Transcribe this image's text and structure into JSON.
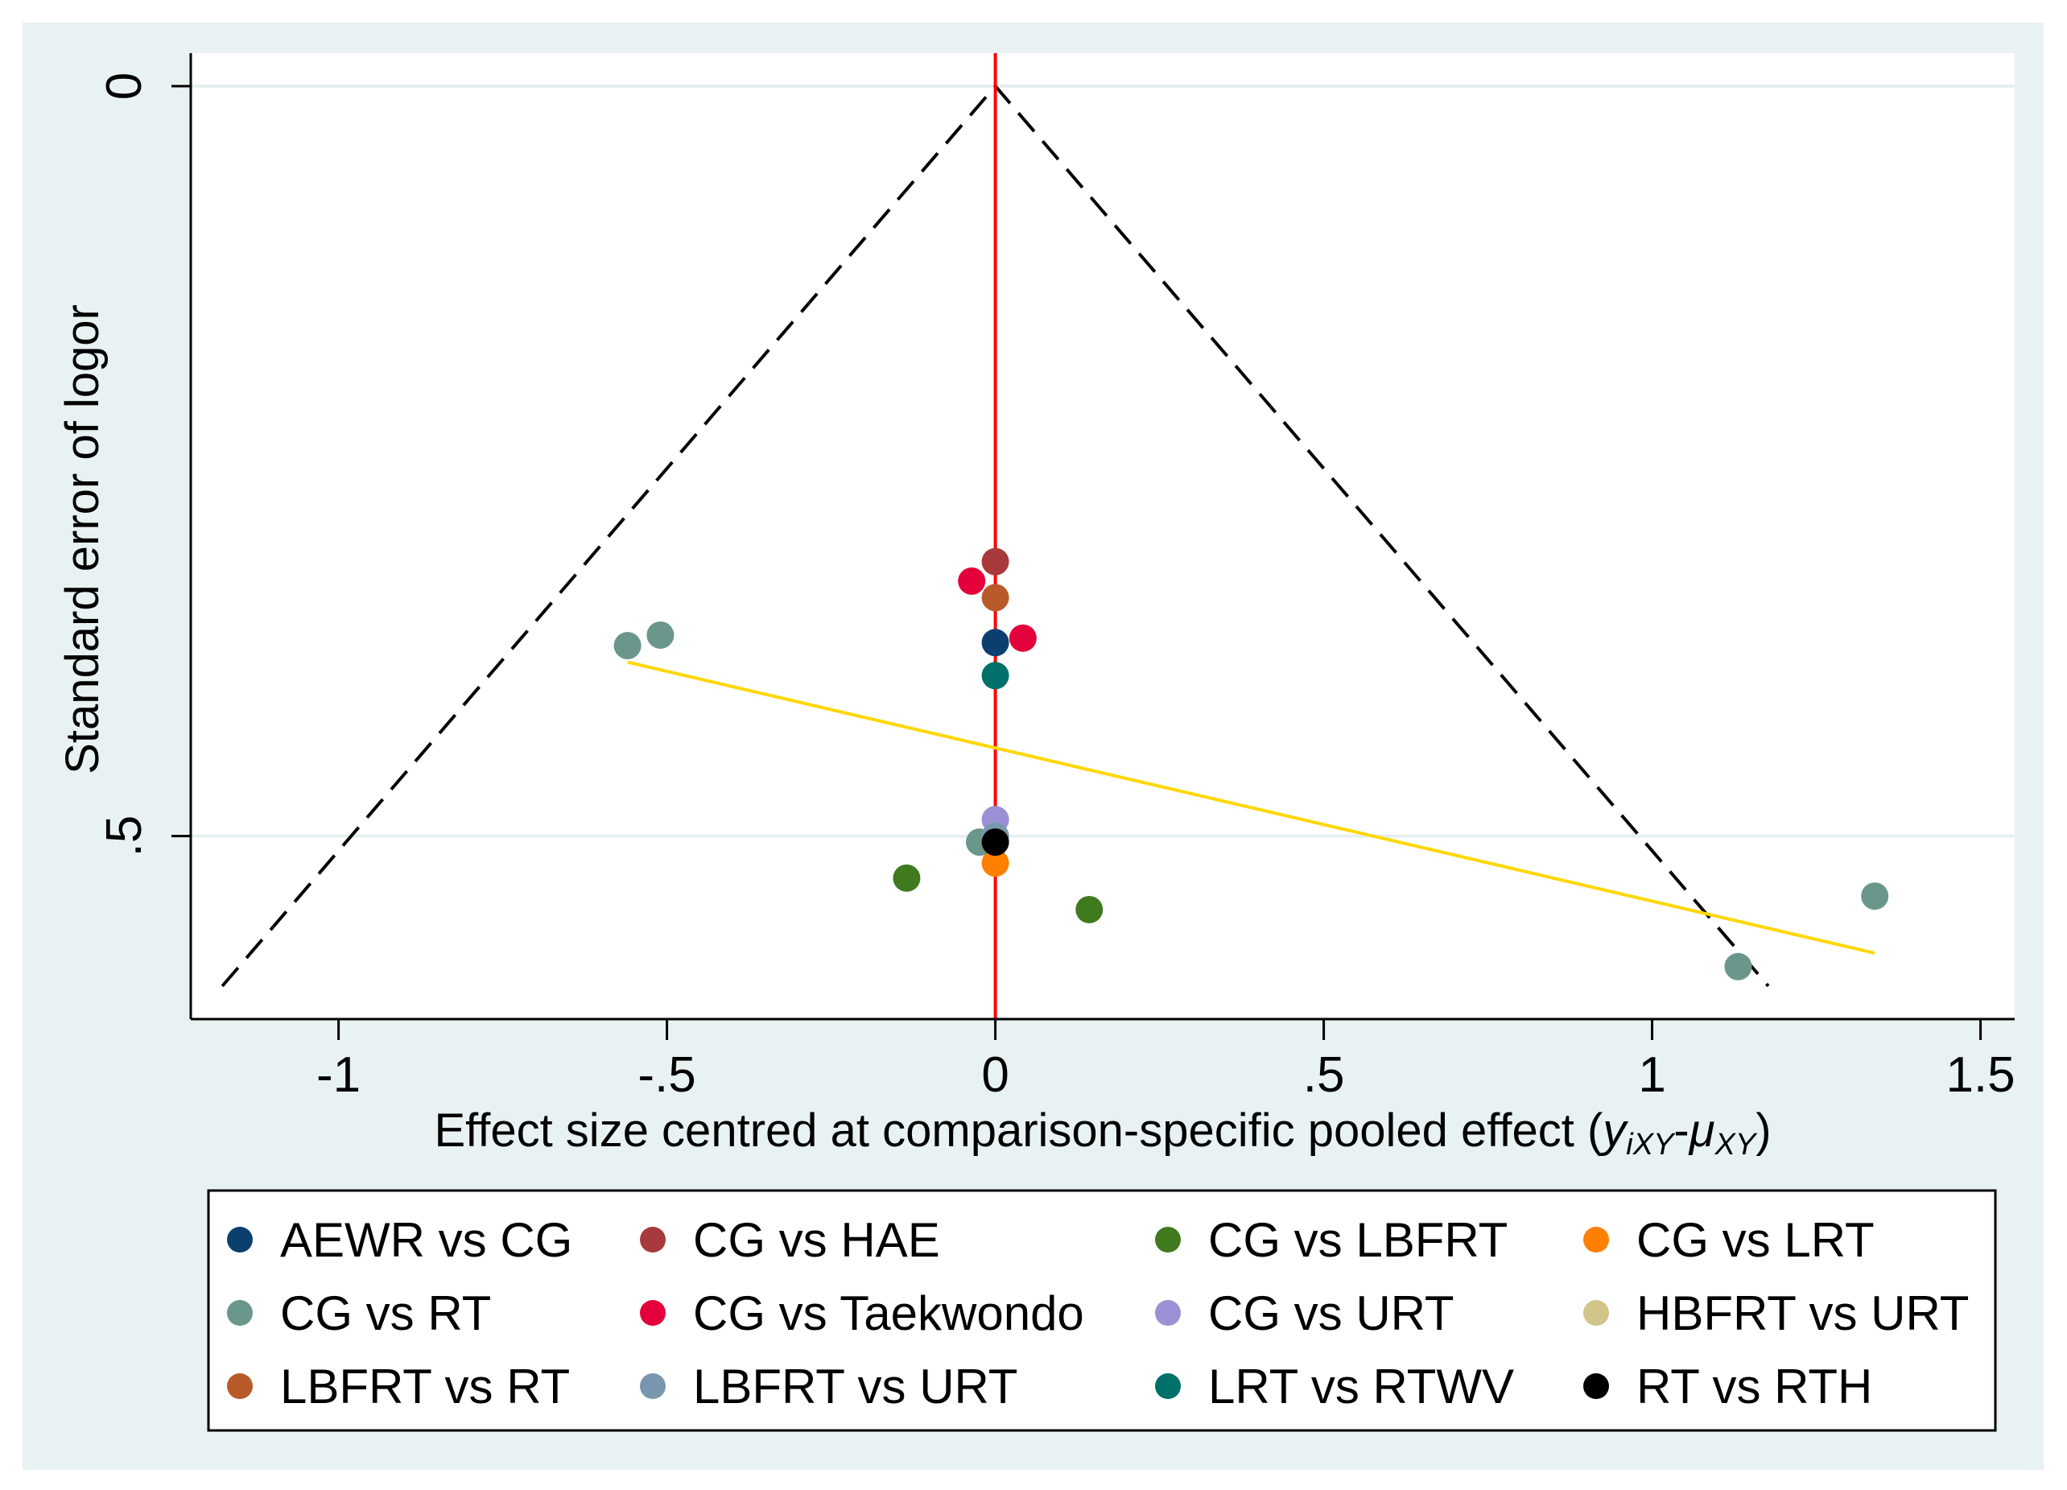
{
  "chart_data": {
    "type": "scatter",
    "title": "",
    "xlabel_main": "Effect size centred at comparison-specific pooled effect (",
    "xlabel_math_y": "y",
    "xlabel_math_y_sub": "iXY",
    "xlabel_math_dash": "-",
    "xlabel_math_mu": "μ",
    "xlabel_math_mu_sub": "XY",
    "xlabel_close": ")",
    "ylabel": "Standard error of logor",
    "xlim": [
      -1.225,
      1.552
    ],
    "ylim": [
      -0.022,
      0.622
    ],
    "y_reversed": true,
    "xticks": [
      {
        "v": -1,
        "label": "-1"
      },
      {
        "v": -0.5,
        "label": "-.5"
      },
      {
        "v": 0,
        "label": "0"
      },
      {
        "v": 0.5,
        "label": ".5"
      },
      {
        "v": 1,
        "label": "1"
      },
      {
        "v": 1.5,
        "label": "1.5"
      }
    ],
    "yticks": [
      {
        "v": 0,
        "label": "0"
      },
      {
        "v": 0.5,
        "label": ".5"
      }
    ],
    "grid": true,
    "reference_line": {
      "x": 0,
      "color": "#ff0000"
    },
    "funnel": {
      "apex": [
        0,
        0
      ],
      "se_max": 0.6,
      "half_width_at_max": 1.177,
      "color": "#000000"
    },
    "regression_line": {
      "from": [
        -0.56,
        0.384
      ],
      "to": [
        1.339,
        0.578
      ],
      "color": "#ffd700"
    },
    "legend_position": "bottom",
    "series": [
      {
        "name": "AEWR vs CG",
        "color": "#0b3f6e",
        "points": [
          [
            0,
            0.371
          ]
        ]
      },
      {
        "name": "CG vs HAE",
        "color": "#a83a3c",
        "points": [
          [
            0,
            0.317
          ]
        ]
      },
      {
        "name": "CG vs LBFRT",
        "color": "#3f7a1e",
        "points": [
          [
            -0.135,
            0.528
          ],
          [
            0.143,
            0.549
          ]
        ]
      },
      {
        "name": "CG vs LRT",
        "color": "#ff8000",
        "points": [
          [
            0,
            0.518
          ]
        ]
      },
      {
        "name": "CG vs RT",
        "color": "#6a968c",
        "points": [
          [
            -0.56,
            0.373
          ],
          [
            -0.51,
            0.366
          ],
          [
            -0.024,
            0.504
          ],
          [
            1.131,
            0.587
          ],
          [
            1.339,
            0.54
          ]
        ]
      },
      {
        "name": "CG vs Taekwondo",
        "color": "#e4003a",
        "points": [
          [
            -0.036,
            0.33
          ],
          [
            0.042,
            0.368
          ]
        ]
      },
      {
        "name": "CG vs URT",
        "color": "#9b8fd5",
        "points": [
          [
            0,
            0.489
          ]
        ]
      },
      {
        "name": "HBFRT vs URT",
        "color": "#d2c58a",
        "points": [
          [
            0,
            0.5
          ]
        ]
      },
      {
        "name": "LBFRT vs RT",
        "color": "#b85a2a",
        "points": [
          [
            0,
            0.341
          ]
        ]
      },
      {
        "name": "LBFRT vs URT",
        "color": "#7896ad",
        "points": [
          [
            0,
            0.5
          ]
        ]
      },
      {
        "name": "LRT vs RTWV",
        "color": "#00706a",
        "points": [
          [
            0,
            0.393
          ]
        ]
      },
      {
        "name": "RT vs RTH",
        "color": "#000000",
        "points": [
          [
            0,
            0.504
          ]
        ]
      }
    ]
  }
}
